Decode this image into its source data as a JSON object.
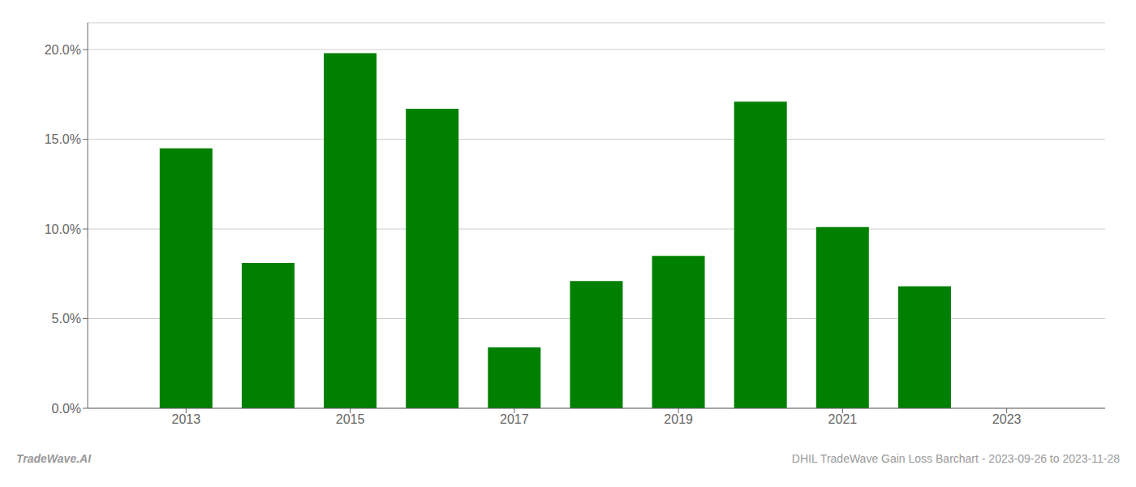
{
  "chart_data": {
    "type": "bar",
    "x": [
      2013,
      2014,
      2015,
      2016,
      2017,
      2018,
      2019,
      2020,
      2021,
      2022
    ],
    "values": [
      0.145,
      0.081,
      0.198,
      0.167,
      0.034,
      0.071,
      0.085,
      0.171,
      0.101,
      0.068
    ],
    "color": "#008000",
    "xlim": [
      2011.8,
      2024.2
    ],
    "xticks": [
      2013,
      2015,
      2017,
      2019,
      2021,
      2023
    ],
    "ylim": [
      0,
      0.215
    ],
    "yticks": [
      {
        "value": 0,
        "label": "0.0%"
      },
      {
        "value": 0.05,
        "label": "5.0%"
      },
      {
        "value": 0.1,
        "label": "10.0%"
      },
      {
        "value": 0.15,
        "label": "15.0%"
      },
      {
        "value": 0.2,
        "label": "20.0%"
      }
    ],
    "grid": true,
    "annotations": [
      "TradeWave.AI",
      "DHIL TradeWave Gain Loss Barchart - 2023-09-26 to 2023-11-28"
    ]
  }
}
